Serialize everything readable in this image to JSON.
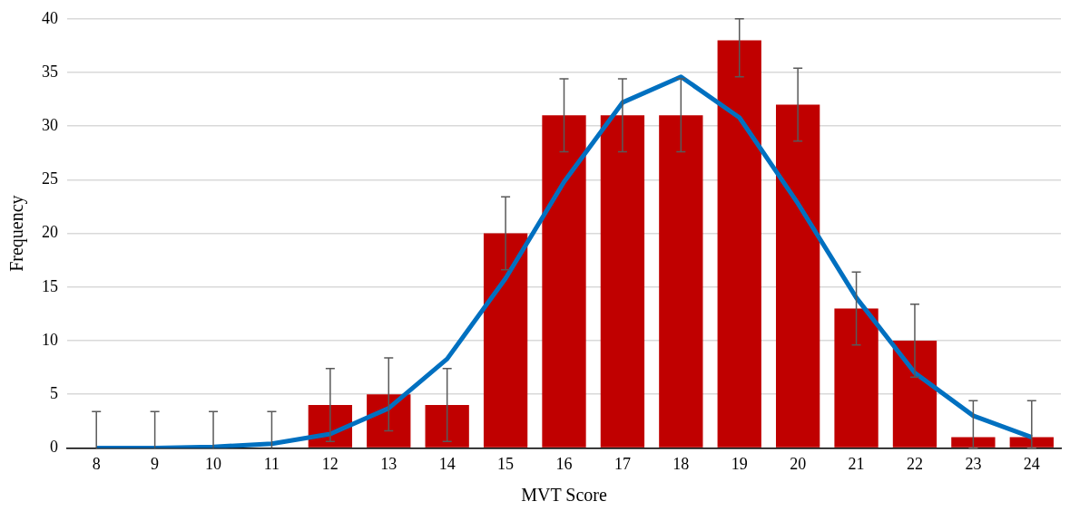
{
  "chart_data": {
    "type": "bar",
    "xlabel": "MVT Score",
    "ylabel": "Frequency",
    "categories": [
      "8",
      "9",
      "10",
      "11",
      "12",
      "13",
      "14",
      "15",
      "16",
      "17",
      "18",
      "19",
      "20",
      "21",
      "22",
      "23",
      "24"
    ],
    "series": [
      {
        "color": "#c00000",
        "values": [
          0,
          0,
          0,
          0,
          4,
          5,
          4,
          20,
          31,
          31,
          31,
          38,
          32,
          13,
          10,
          1,
          1
        ],
        "errors": [
          [
            0,
            3.4
          ],
          [
            0,
            3.4
          ],
          [
            0,
            3.4
          ],
          [
            0,
            3.4
          ],
          3.4,
          3.4,
          3.4,
          3.4,
          3.4,
          3.4,
          3.4,
          [
            34.6,
            40
          ],
          3.4,
          3.4,
          3.4,
          [
            0,
            4.4
          ],
          [
            0,
            4.4
          ]
        ]
      },
      {
        "type": "line",
        "color": "#0070c0",
        "values": [
          0,
          0,
          0.1,
          0.4,
          1.3,
          3.7,
          8.3,
          15.8,
          24.8,
          32.2,
          34.6,
          30.8,
          22.8,
          14,
          7,
          3,
          1
        ]
      }
    ],
    "ylim": [
      0,
      40
    ],
    "yticks": [
      0,
      5,
      10,
      15,
      20,
      25,
      30,
      35,
      40
    ],
    "grid": "y",
    "legend": false,
    "marker": "none"
  }
}
